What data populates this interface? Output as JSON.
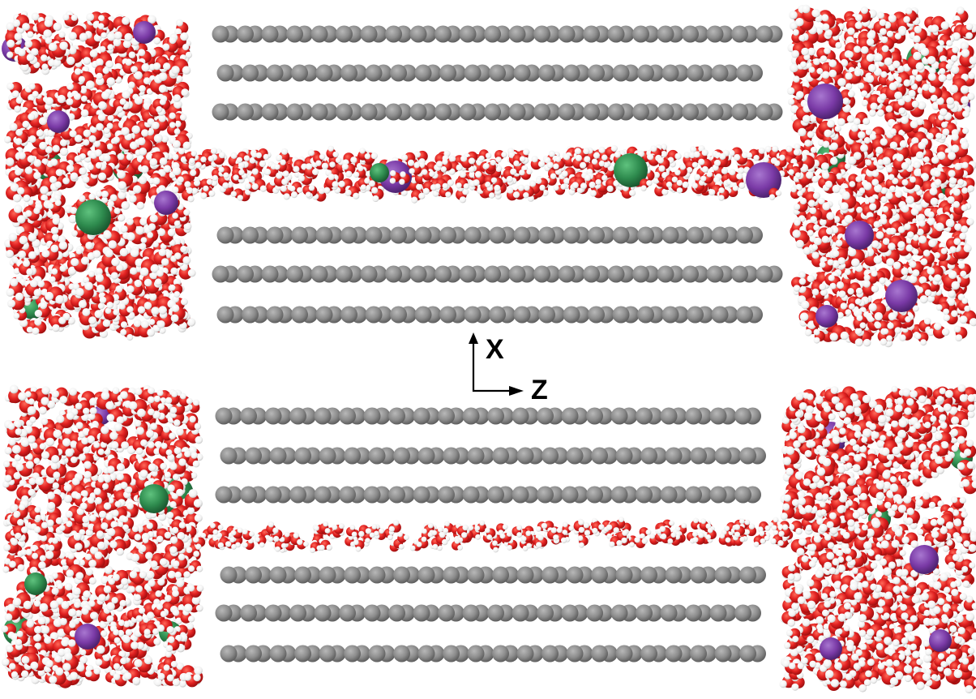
{
  "axes": {
    "x_label": "X",
    "z_label": "Z"
  },
  "colors": {
    "background": "#ffffff",
    "carbon": "#8c8c8c",
    "carbon_dark": "#6e6e6e",
    "oxygen": "#e02020",
    "oxygen_dark": "#b31313",
    "hydrogen": "#ffffff",
    "cation": "#7a3aa6",
    "anion": "#2e8b4e",
    "axis": "#000000"
  },
  "panels": [
    {
      "name": "top",
      "carbon_rows": 6,
      "water_bridge": "thick",
      "ions_in_channel": 4
    },
    {
      "name": "bottom",
      "carbon_rows": 6,
      "water_bridge": "thin",
      "ions_in_channel": 0
    }
  ]
}
